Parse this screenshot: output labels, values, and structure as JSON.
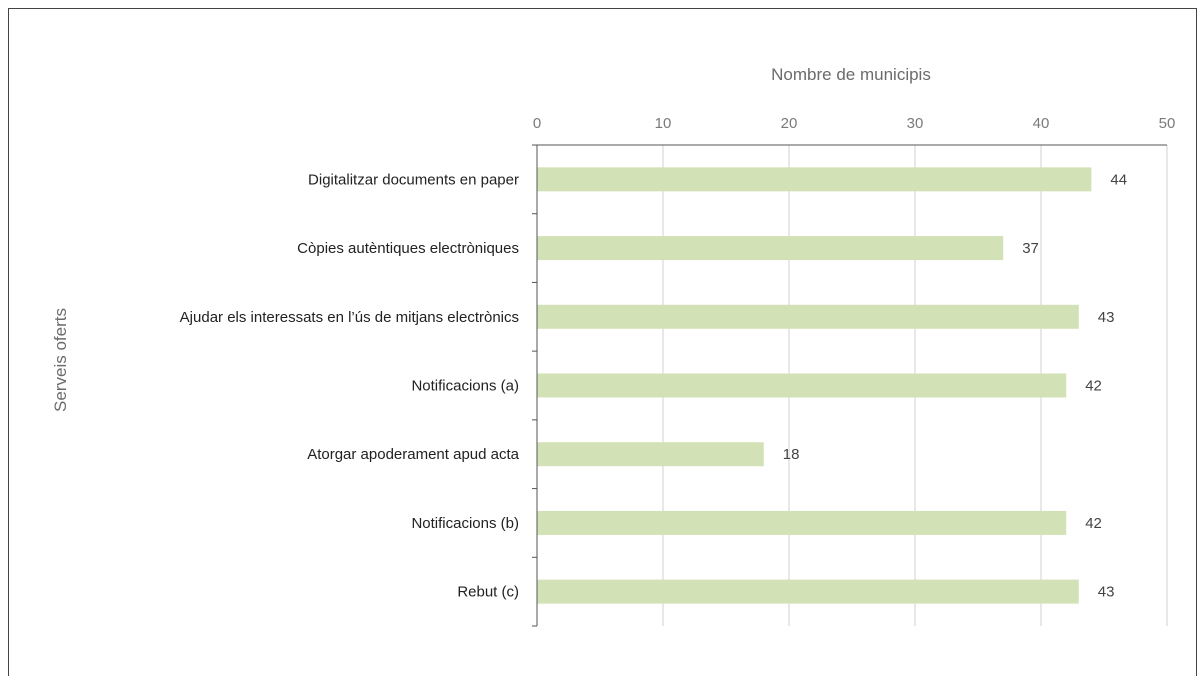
{
  "chart_data": {
    "type": "bar",
    "orientation": "horizontal",
    "xlabel": "Nombre de municipis",
    "ylabel": "Serveis oferts",
    "xlim": [
      0,
      50
    ],
    "xticks": [
      0,
      10,
      20,
      30,
      40,
      50
    ],
    "x_axis_position": "top",
    "grid": true,
    "categories": [
      "Digitalitzar documents en paper",
      "Còpies autèntiques electròniques",
      "Ajudar els interessats en l’ús de mitjans electrònics",
      "Notificacions (a)",
      "Atorgar apoderament apud acta",
      "Notificacions (b)",
      "Rebut (c)"
    ],
    "values": [
      44,
      37,
      43,
      42,
      18,
      42,
      43
    ],
    "data_labels": [
      "44",
      "37",
      "43",
      "42",
      "18",
      "42",
      "43"
    ],
    "bar_color": "#d3e2b6",
    "grid_color": "#d9d9d9",
    "axis_color": "#555555"
  }
}
